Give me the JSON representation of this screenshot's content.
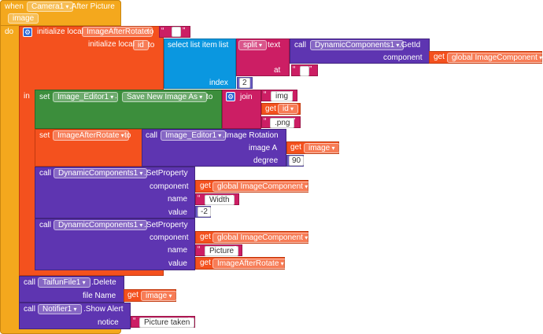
{
  "event": {
    "when": "when",
    "component": "Camera1",
    "event_name": ".After Picture",
    "param": "image",
    "do": "do",
    "in": "in"
  },
  "local1": {
    "label": "initialize local",
    "name": "ImageAfterRotate",
    "to": "to"
  },
  "local2": {
    "label": "initialize local",
    "name": "id",
    "to": "to"
  },
  "select": {
    "label": "select list item",
    "list": "list",
    "index_label": "index",
    "index_value": "2"
  },
  "split": {
    "label": "split",
    "text": "text",
    "at": "at"
  },
  "getid": {
    "call": "call",
    "component": "DynamicComponents1",
    "method": ".GetId",
    "component_label": "component",
    "get": "get",
    "var": "global ImageComponent"
  },
  "set1": {
    "set": "set",
    "component": "Image_Editor1",
    "prop": "Save New Image As",
    "to": "to"
  },
  "join": {
    "label": "join",
    "s1": "img",
    "get": "get",
    "var": "id",
    "s3": ".png"
  },
  "set2": {
    "set": "set",
    "var": "ImageAfterRotate",
    "to": "to"
  },
  "rotate": {
    "call": "call",
    "component": "Image_Editor1",
    "method": ".Image Rotation",
    "imageA": "image A",
    "get": "get",
    "var": "image",
    "degree": "degree",
    "degree_value": "90"
  },
  "sp1": {
    "call": "call",
    "component": "DynamicComponents1",
    "method": ".SetProperty",
    "component_label": "component",
    "get": "get",
    "comp_var": "global ImageComponent",
    "name_label": "name",
    "name_value": "Width",
    "value_label": "value",
    "value_value": "-2"
  },
  "sp2": {
    "call": "call",
    "component": "DynamicComponents1",
    "method": ".SetProperty",
    "component_label": "component",
    "get": "get",
    "comp_var": "global ImageComponent",
    "name_label": "name",
    "name_value": "Picture",
    "value_label": "value",
    "value_var": "ImageAfterRotate"
  },
  "del": {
    "call": "call",
    "component": "TaifunFile1",
    "method": ".Delete",
    "file_label": "file Name",
    "get": "get",
    "var": "image"
  },
  "alert": {
    "call": "call",
    "component": "Notifier1",
    "method": ".Show Alert",
    "notice": "notice",
    "value": "Picture taken"
  }
}
